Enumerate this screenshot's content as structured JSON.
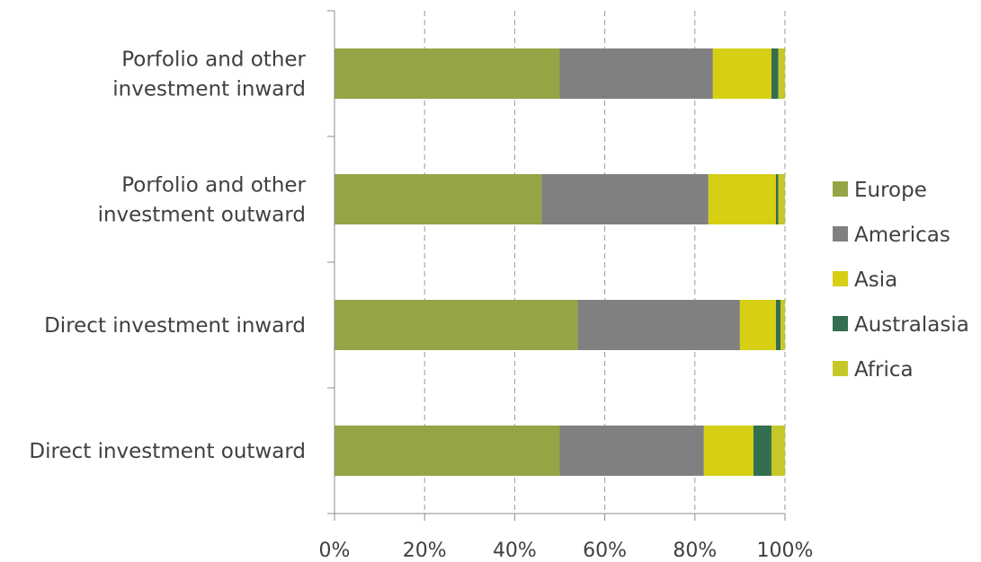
{
  "chart_data": {
    "type": "bar",
    "orientation": "horizontal",
    "stacked": "percent",
    "title": "",
    "xlabel": "",
    "ylabel": "",
    "xlim": [
      0,
      100
    ],
    "x_ticks": [
      "0%",
      "20%",
      "40%",
      "60%",
      "80%",
      "100%"
    ],
    "grid": "vertical dashed",
    "legend_position": "right",
    "categories": [
      [
        "Porfolio and other",
        "investment inward"
      ],
      [
        "Porfolio and other",
        "investment outward"
      ],
      [
        "Direct investment inward"
      ],
      [
        "Direct investment outward"
      ]
    ],
    "series": [
      {
        "name": "Europe",
        "color": "#93a545",
        "values": [
          50,
          46,
          54,
          50
        ]
      },
      {
        "name": "Americas",
        "color": "#808080",
        "values": [
          34,
          37,
          36,
          32
        ]
      },
      {
        "name": "Asia",
        "color": "#d6cf14",
        "values": [
          13,
          15,
          8,
          11
        ]
      },
      {
        "name": "Australasia",
        "color": "#336e51",
        "values": [
          1.5,
          0.5,
          1,
          4
        ]
      },
      {
        "name": "Africa",
        "color": "#c6c82a",
        "values": [
          1.5,
          1.5,
          1,
          3
        ]
      }
    ]
  }
}
